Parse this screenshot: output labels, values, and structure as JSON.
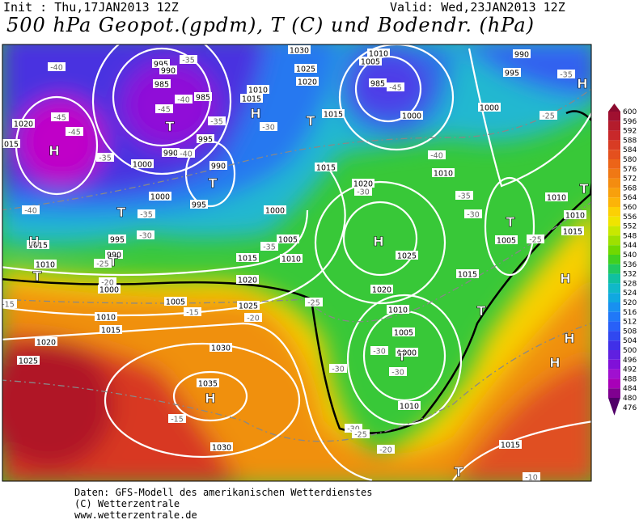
{
  "header": {
    "init": "Init : Thu,17JAN2013 12Z",
    "valid": "Valid: Wed,23JAN2013 12Z",
    "title": "500 hPa Geopot.(gpdm), T (C) und Bodendr. (hPa)"
  },
  "colorbar": {
    "levels": [
      600,
      596,
      592,
      588,
      584,
      580,
      576,
      572,
      568,
      564,
      560,
      556,
      552,
      548,
      544,
      540,
      536,
      532,
      528,
      524,
      520,
      516,
      512,
      508,
      504,
      500,
      496,
      492,
      488,
      484,
      480,
      476
    ],
    "colors": [
      "#8b0a2e",
      "#a01030",
      "#b41c2c",
      "#c8282a",
      "#d83c24",
      "#e4501e",
      "#ec6418",
      "#f07814",
      "#f48c10",
      "#f8a00c",
      "#fcb408",
      "#fcd004",
      "#f0e400",
      "#c8e800",
      "#9ee000",
      "#70d800",
      "#40d020",
      "#20c860",
      "#10c0a0",
      "#10b8c8",
      "#10a8e0",
      "#1890f0",
      "#2078f8",
      "#2860f8",
      "#3048f0",
      "#4030e8",
      "#6020e0",
      "#8010d8",
      "#a010d0",
      "#a800b8",
      "#800090",
      "#500068"
    ]
  },
  "map": {
    "pressure_labels": [
      "1030",
      "1025",
      "1020",
      "1010",
      "1005",
      "995",
      "990",
      "985",
      "985",
      "990",
      "995",
      "990",
      "1000",
      "1000",
      "995",
      "985",
      "1000",
      "1000",
      "1005",
      "1010",
      "1015",
      "1020",
      "1025",
      "1015",
      "1020",
      "1025",
      "1020",
      "1015",
      "1010",
      "1005",
      "1010",
      "1010",
      "1015",
      "1000",
      "995",
      "990",
      "1020",
      "1015",
      "1010",
      "995",
      "990",
      "1000",
      "1005",
      "1010",
      "1015",
      "1020",
      "1025",
      "1030",
      "1035",
      "1030",
      "1015",
      "1010",
      "1005",
      "1000",
      "1010",
      "1010",
      "1015",
      "1015",
      "1015"
    ],
    "temperature_labels": [
      "-40",
      "-45",
      "-45",
      "-35",
      "-40",
      "-35",
      "-30",
      "-25",
      "-20",
      "-15",
      "-20",
      "-25",
      "-30",
      "-35",
      "-30",
      "-25",
      "-25",
      "-35",
      "-40",
      "-45",
      "-35",
      "-40",
      "-45",
      "-40",
      "-35",
      "-30",
      "-35",
      "-30",
      "-30",
      "-30",
      "-30",
      "-25",
      "-20",
      "-15",
      "-10",
      "-15"
    ],
    "centers": [
      "H",
      "T",
      "H",
      "T",
      "T",
      "H",
      "T",
      "T",
      "T",
      "H",
      "T",
      "H",
      "T",
      "H",
      "H",
      "T",
      "H",
      "T",
      "T",
      "H"
    ]
  },
  "footer": {
    "line1": "Daten: GFS-Modell des amerikanischen Wetterdienstes",
    "line2": "(C) Wetterzentrale",
    "line3": "www.wetterzentrale.de"
  }
}
